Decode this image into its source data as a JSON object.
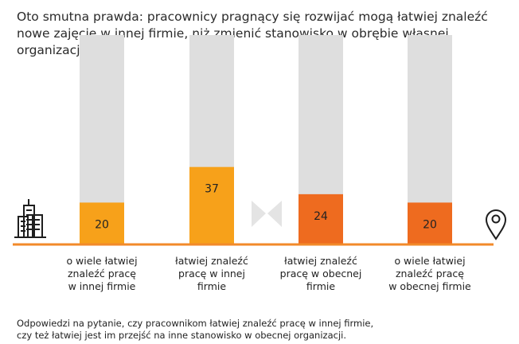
{
  "title": "Oto smutna prawda: pracownicy pragnący się rozwijać mogą łatwiej znaleźć nowe zajęcie w innej firmie, niż zmienić stanowisko w obrębie własnej organizacji.",
  "note_lines": [
    "Odpowiedzi na pytanie, czy pracownikom łatwiej znaleźć pracę w innej firmie,",
    "czy też łatwiej jest im przejść na inne stanowisko w obecnej organizacji."
  ],
  "icons": {
    "left": "office-buildings-icon",
    "middle": "bowtie-divider-icon",
    "right": "location-pin-icon"
  },
  "colors": {
    "track": "#dedede",
    "bar_group1": "#f7a11a",
    "bar_group2": "#ee6b1f",
    "axis": "#f28a2a",
    "text": "#222222"
  },
  "chart_data": {
    "type": "bar",
    "categories": [
      [
        "o wiele łatwiej",
        "znaleźć pracę",
        "w innej firmie"
      ],
      [
        "łatwiej znaleźć",
        "pracę w innej",
        "firmie"
      ],
      [
        "łatwiej znaleźć",
        "pracę w obecnej",
        "firmie"
      ],
      [
        "o wiele łatwiej",
        "znaleźć pracę",
        "w obecnej firmie"
      ]
    ],
    "values": [
      20,
      37,
      24,
      20
    ],
    "ylim": [
      0,
      100
    ],
    "grid": false,
    "legend": "none"
  }
}
